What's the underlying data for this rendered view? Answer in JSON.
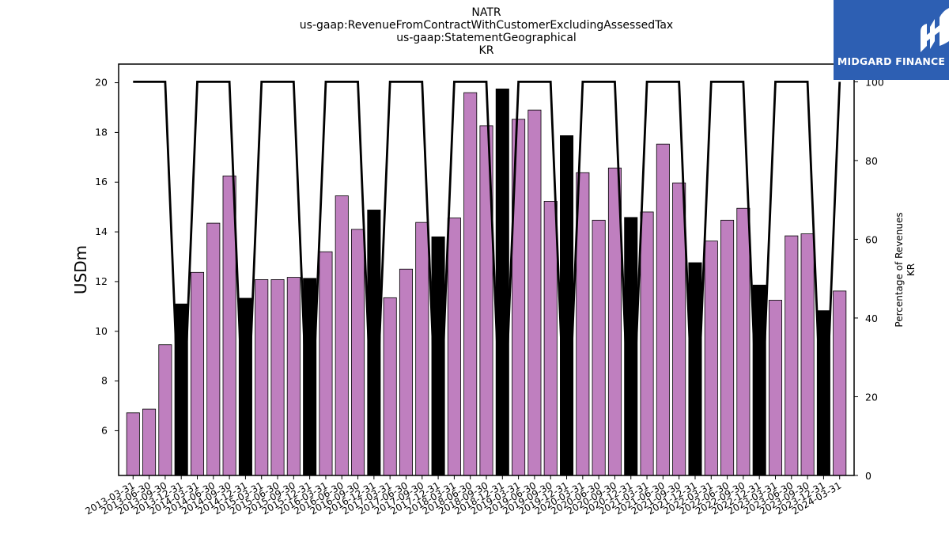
{
  "logo": {
    "text": "MIDGARD FINANCE",
    "icon": "midgard-logo-icon",
    "background": "#2d5fb3"
  },
  "chart_data": {
    "type": "bar",
    "title_lines": [
      "NATR",
      "us-gaap:RevenueFromContractWithCustomerExcludingAssessedTax",
      "us-gaap:StatementGeographical",
      "KR"
    ],
    "ylabel": "USDm",
    "y2label_lines": [
      "Percentage of Revenues",
      "KR"
    ],
    "ylim": [
      4.2,
      20.75
    ],
    "y2lim": [
      0,
      104.5
    ],
    "yticks": [
      6,
      8,
      10,
      12,
      14,
      16,
      18,
      20
    ],
    "y2ticks": [
      0,
      20,
      40,
      60,
      80,
      100
    ],
    "colors": {
      "quarter": "#bf7fbf",
      "annual": "#000000",
      "line": "#000000"
    },
    "categories": [
      "2013-03-31",
      "2013-06-30",
      "2013-09-30",
      "2013-12-31",
      "2014-03-31",
      "2014-06-30",
      "2014-09-30",
      "2014-12-31",
      "2015-03-31",
      "2015-06-30",
      "2015-09-30",
      "2015-12-31",
      "2016-03-31",
      "2016-06-30",
      "2016-09-30",
      "2016-12-31",
      "2017-03-31",
      "2017-06-30",
      "2017-09-30",
      "2017-12-31",
      "2018-03-31",
      "2018-06-30",
      "2018-09-30",
      "2018-12-31",
      "2019-03-31",
      "2019-06-30",
      "2019-09-30",
      "2019-12-31",
      "2020-03-31",
      "2020-06-30",
      "2020-09-30",
      "2020-12-31",
      "2021-03-31",
      "2021-06-30",
      "2021-09-30",
      "2021-12-31",
      "2022-03-31",
      "2022-06-30",
      "2022-09-30",
      "2022-12-31",
      "2023-03-31",
      "2023-06-30",
      "2023-09-30",
      "2023-12-31",
      "2024-03-31"
    ],
    "series": [
      {
        "values": [
          6.72,
          6.87,
          9.46,
          11.1,
          12.37,
          14.35,
          16.25,
          11.33,
          12.08,
          12.08,
          12.17,
          12.13,
          13.2,
          15.45,
          14.1,
          14.88,
          11.35,
          12.5,
          14.38,
          13.8,
          14.56,
          19.6,
          18.27,
          19.75,
          18.53,
          18.9,
          15.23,
          17.87,
          16.38,
          14.47,
          16.57,
          14.58,
          14.8,
          17.53,
          15.97,
          12.76,
          13.63,
          14.47,
          14.95,
          11.86,
          11.25,
          13.84,
          13.92,
          10.83,
          11.62
        ]
      },
      {
        "values": [
          100,
          100,
          100,
          null,
          100,
          100,
          100,
          null,
          100,
          100,
          100,
          null,
          100,
          100,
          100,
          null,
          100,
          100,
          100,
          null,
          100,
          100,
          100,
          null,
          100,
          100,
          100,
          null,
          100,
          100,
          100,
          null,
          100,
          100,
          100,
          null,
          100,
          100,
          100,
          null,
          100,
          100,
          100,
          null,
          100
        ]
      }
    ]
  }
}
